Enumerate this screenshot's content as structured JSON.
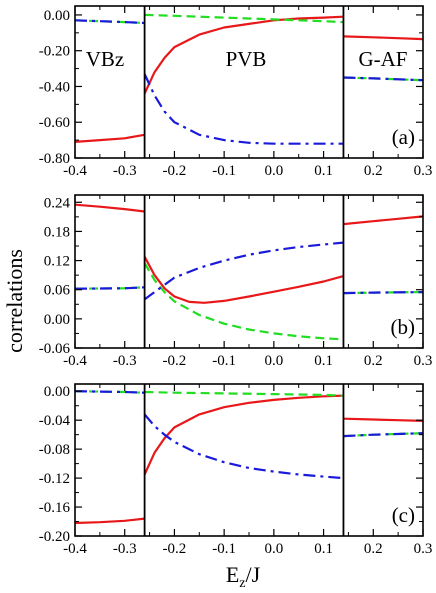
{
  "figure": {
    "ylabel": "correlations",
    "xlabel_main": "E",
    "xlabel_sub": "z",
    "xlabel_tail": "/J"
  },
  "colors": {
    "series_solid": "#e8181a",
    "series_dashed": "#22dd22",
    "series_dashdot": "#1a1adb",
    "axis": "#000000"
  },
  "chart_data": [
    {
      "type": "line",
      "panel": "(a)",
      "xlim": [
        -0.4,
        0.3
      ],
      "ylim": [
        -0.8,
        0.05
      ],
      "xticks": [
        "-0.4",
        "-0.3",
        "-0.2",
        "-0.1",
        "0.0",
        "0.1",
        "0.2",
        "0.3"
      ],
      "yticks": [
        "0.00",
        "-0.20",
        "-0.40",
        "-0.60",
        "-0.80"
      ],
      "ytick_values": [
        0.0,
        -0.2,
        -0.4,
        -0.6,
        -0.8
      ],
      "phase_boundaries": [
        -0.26,
        0.14
      ],
      "region_labels": [
        "VBz",
        "PVB",
        "G-AF"
      ],
      "grid": false,
      "series": [
        {
          "style": "solid",
          "color": "#e8181a",
          "segments": [
            {
              "x": [
                -0.4,
                -0.35,
                -0.3,
                -0.26
              ],
              "y": [
                -0.71,
                -0.7,
                -0.69,
                -0.67
              ]
            },
            {
              "x": [
                -0.26,
                -0.24,
                -0.22,
                -0.2,
                -0.15,
                -0.1,
                -0.05,
                0.0,
                0.05,
                0.1,
                0.14
              ],
              "y": [
                -0.44,
                -0.32,
                -0.24,
                -0.18,
                -0.11,
                -0.07,
                -0.05,
                -0.03,
                -0.02,
                -0.015,
                -0.01
              ]
            },
            {
              "x": [
                0.14,
                0.2,
                0.25,
                0.3
              ],
              "y": [
                -0.12,
                -0.125,
                -0.13,
                -0.135
              ]
            }
          ]
        },
        {
          "style": "dashed",
          "color": "#22dd22",
          "segments": [
            {
              "x": [
                -0.4,
                -0.3,
                -0.26
              ],
              "y": [
                -0.03,
                -0.04,
                -0.045
              ]
            },
            {
              "x": [
                -0.26,
                -0.2,
                -0.1,
                0.0,
                0.1,
                0.14
              ],
              "y": [
                0.0,
                -0.005,
                -0.015,
                -0.025,
                -0.035,
                -0.04
              ]
            },
            {
              "x": [
                0.14,
                0.2,
                0.3
              ],
              "y": [
                -0.35,
                -0.355,
                -0.365
              ]
            }
          ]
        },
        {
          "style": "dashdot",
          "color": "#1a1adb",
          "segments": [
            {
              "x": [
                -0.4,
                -0.3,
                -0.26
              ],
              "y": [
                -0.03,
                -0.04,
                -0.045
              ]
            },
            {
              "x": [
                -0.26,
                -0.24,
                -0.22,
                -0.2,
                -0.15,
                -0.1,
                -0.05,
                0.0,
                0.05,
                0.1,
                0.14
              ],
              "y": [
                -0.33,
                -0.45,
                -0.54,
                -0.6,
                -0.67,
                -0.7,
                -0.715,
                -0.72,
                -0.72,
                -0.72,
                -0.72
              ]
            },
            {
              "x": [
                0.14,
                0.2,
                0.3
              ],
              "y": [
                -0.35,
                -0.355,
                -0.365
              ]
            }
          ]
        }
      ]
    },
    {
      "type": "line",
      "panel": "(b)",
      "xlim": [
        -0.4,
        0.3
      ],
      "ylim": [
        -0.06,
        0.255
      ],
      "xticks": [
        "-0.4",
        "-0.3",
        "-0.2",
        "-0.1",
        "0.0",
        "0.1",
        "0.2",
        "0.3"
      ],
      "yticks": [
        "0.24",
        "0.18",
        "0.12",
        "0.06",
        "0.00",
        "-0.06"
      ],
      "ytick_values": [
        0.24,
        0.18,
        0.12,
        0.06,
        0.0,
        -0.06
      ],
      "phase_boundaries": [
        -0.26,
        0.14
      ],
      "region_labels": [],
      "grid": false,
      "series": [
        {
          "style": "solid",
          "color": "#e8181a",
          "segments": [
            {
              "x": [
                -0.4,
                -0.35,
                -0.3,
                -0.26
              ],
              "y": [
                0.235,
                0.231,
                0.226,
                0.221
              ]
            },
            {
              "x": [
                -0.26,
                -0.24,
                -0.22,
                -0.2,
                -0.17,
                -0.14,
                -0.1,
                -0.05,
                0.0,
                0.05,
                0.1,
                0.14
              ],
              "y": [
                0.128,
                0.09,
                0.063,
                0.046,
                0.035,
                0.033,
                0.037,
                0.046,
                0.056,
                0.066,
                0.077,
                0.088
              ]
            },
            {
              "x": [
                0.14,
                0.2,
                0.25,
                0.3
              ],
              "y": [
                0.195,
                0.201,
                0.206,
                0.211
              ]
            }
          ]
        },
        {
          "style": "dashed",
          "color": "#22dd22",
          "segments": [
            {
              "x": [
                -0.4,
                -0.3,
                -0.26
              ],
              "y": [
                0.062,
                0.063,
                0.065
              ]
            },
            {
              "x": [
                -0.26,
                -0.24,
                -0.22,
                -0.2,
                -0.15,
                -0.1,
                -0.05,
                0.0,
                0.05,
                0.1,
                0.14
              ],
              "y": [
                0.115,
                0.08,
                0.055,
                0.036,
                0.008,
                -0.01,
                -0.022,
                -0.03,
                -0.036,
                -0.04,
                -0.042
              ]
            },
            {
              "x": [
                0.14,
                0.2,
                0.3
              ],
              "y": [
                0.053,
                0.054,
                0.055
              ]
            }
          ]
        },
        {
          "style": "dashdot",
          "color": "#1a1adb",
          "segments": [
            {
              "x": [
                -0.4,
                -0.3,
                -0.26
              ],
              "y": [
                0.062,
                0.063,
                0.065
              ]
            },
            {
              "x": [
                -0.26,
                -0.24,
                -0.22,
                -0.2,
                -0.15,
                -0.1,
                -0.05,
                0.0,
                0.05,
                0.1,
                0.14
              ],
              "y": [
                0.04,
                0.055,
                0.07,
                0.085,
                0.105,
                0.12,
                0.132,
                0.141,
                0.148,
                0.153,
                0.157
              ]
            },
            {
              "x": [
                0.14,
                0.2,
                0.3
              ],
              "y": [
                0.053,
                0.054,
                0.055
              ]
            }
          ]
        }
      ]
    },
    {
      "type": "line",
      "panel": "(c)",
      "xlim": [
        -0.4,
        0.3
      ],
      "ylim": [
        -0.2,
        0.01
      ],
      "xticks": [
        "-0.4",
        "-0.3",
        "-0.2",
        "-0.1",
        "0.0",
        "0.1",
        "0.2",
        "0.3"
      ],
      "yticks": [
        "0.00",
        "-0.04",
        "-0.08",
        "-0.12",
        "-0.16",
        "-0.20"
      ],
      "ytick_values": [
        0.0,
        -0.04,
        -0.08,
        -0.12,
        -0.16,
        -0.2
      ],
      "phase_boundaries": [
        -0.26,
        0.14
      ],
      "region_labels": [],
      "grid": false,
      "series": [
        {
          "style": "solid",
          "color": "#e8181a",
          "segments": [
            {
              "x": [
                -0.4,
                -0.35,
                -0.3,
                -0.26
              ],
              "y": [
                -0.182,
                -0.181,
                -0.179,
                -0.176
              ]
            },
            {
              "x": [
                -0.26,
                -0.24,
                -0.22,
                -0.2,
                -0.15,
                -0.1,
                -0.05,
                0.0,
                0.05,
                0.1,
                0.14
              ],
              "y": [
                -0.115,
                -0.085,
                -0.065,
                -0.05,
                -0.032,
                -0.022,
                -0.016,
                -0.012,
                -0.009,
                -0.007,
                -0.006
              ]
            },
            {
              "x": [
                0.14,
                0.2,
                0.25,
                0.3
              ],
              "y": [
                -0.038,
                -0.039,
                -0.04,
                -0.041
              ]
            }
          ]
        },
        {
          "style": "dashed",
          "color": "#22dd22",
          "segments": [
            {
              "x": [
                -0.4,
                -0.3,
                -0.26
              ],
              "y": [
                0.0,
                -0.001,
                -0.002
              ]
            },
            {
              "x": [
                -0.26,
                -0.2,
                -0.1,
                0.0,
                0.1,
                0.14
              ],
              "y": [
                -0.001,
                -0.002,
                -0.003,
                -0.004,
                -0.005,
                -0.006
              ]
            },
            {
              "x": [
                0.14,
                0.2,
                0.3
              ],
              "y": [
                -0.062,
                -0.06,
                -0.058
              ]
            }
          ]
        },
        {
          "style": "dashdot",
          "color": "#1a1adb",
          "segments": [
            {
              "x": [
                -0.4,
                -0.3,
                -0.26
              ],
              "y": [
                0.0,
                -0.001,
                -0.002
              ]
            },
            {
              "x": [
                -0.26,
                -0.24,
                -0.22,
                -0.2,
                -0.15,
                -0.1,
                -0.05,
                0.0,
                0.05,
                0.1,
                0.14
              ],
              "y": [
                -0.032,
                -0.048,
                -0.06,
                -0.07,
                -0.087,
                -0.098,
                -0.106,
                -0.111,
                -0.115,
                -0.118,
                -0.12
              ]
            },
            {
              "x": [
                0.14,
                0.2,
                0.3
              ],
              "y": [
                -0.062,
                -0.06,
                -0.058
              ]
            }
          ]
        }
      ]
    }
  ]
}
